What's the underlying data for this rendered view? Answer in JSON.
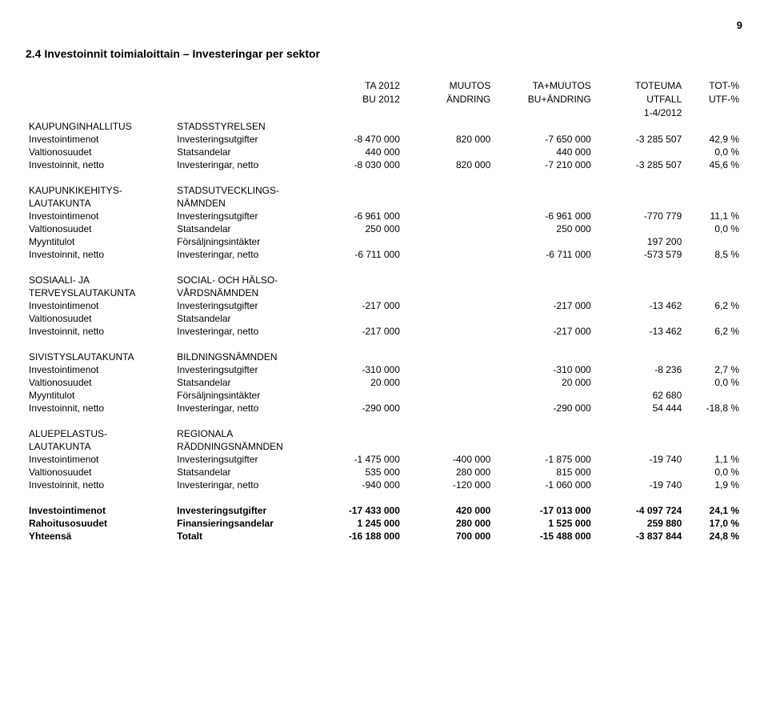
{
  "page_number": "9",
  "section_title": "2.4 Investoinnit toimialoittain – Investeringar per sektor",
  "header": {
    "row1": [
      "TA 2012",
      "MUUTOS",
      "TA+MUUTOS",
      "TOTEUMA",
      "TOT-%"
    ],
    "row2": [
      "BU 2012",
      "ÄNDRING",
      "BU+ÄNDRING",
      "UTFALL",
      "UTF-%"
    ],
    "row3": [
      "",
      "",
      "",
      "1-4/2012",
      ""
    ]
  },
  "groups": [
    {
      "head_fi": "KAUPUNGINHALLITUS",
      "head_sv": "STADSSTYRELSEN",
      "rows": [
        {
          "fi": "Investointimenot",
          "sv": "Investeringsutgifter",
          "c": [
            "-8 470 000",
            "820 000",
            "-7 650 000",
            "-3 285 507",
            "42,9 %"
          ]
        },
        {
          "fi": "Valtionosuudet",
          "sv": "Statsandelar",
          "c": [
            "440 000",
            "",
            "440 000",
            "",
            "0,0 %"
          ]
        },
        {
          "fi": "Investoinnit, netto",
          "sv": "Investeringar, netto",
          "c": [
            "-8 030 000",
            "820 000",
            "-7 210 000",
            "-3 285 507",
            "45,6 %"
          ]
        }
      ]
    },
    {
      "head_fi": "KAUPUNKIKEHITYS-",
      "head_fi2": "LAUTAKUNTA",
      "head_sv": "STADSUTVECKLINGS-",
      "head_sv2": "NÄMNDEN",
      "rows": [
        {
          "fi": "Investointimenot",
          "sv": "Investeringsutgifter",
          "c": [
            "-6 961 000",
            "",
            "-6 961 000",
            "-770 779",
            "11,1 %"
          ]
        },
        {
          "fi": "Valtionosuudet",
          "sv": "Statsandelar",
          "c": [
            "250 000",
            "",
            "250 000",
            "",
            "0,0 %"
          ]
        },
        {
          "fi": "Myyntitulot",
          "sv": "Försäljningsintäkter",
          "c": [
            "",
            "",
            "",
            "197 200",
            ""
          ]
        },
        {
          "fi": "Investoinnit, netto",
          "sv": "Investeringar, netto",
          "c": [
            "-6 711 000",
            "",
            "-6 711 000",
            "-573 579",
            "8,5 %"
          ]
        }
      ]
    },
    {
      "head_fi": "SOSIAALI- JA",
      "head_fi2": " TERVEYSLAUTAKUNTA",
      "head_sv": "SOCIAL- OCH HÄLSO-",
      "head_sv2": "VÅRDSNÄMNDEN",
      "rows": [
        {
          "fi": "Investointimenot",
          "sv": "Investeringsutgifter",
          "c": [
            "-217 000",
            "",
            "-217 000",
            "-13 462",
            "6,2 %"
          ]
        },
        {
          "fi": "Valtionosuudet",
          "sv": "Statsandelar",
          "c": [
            "",
            "",
            "",
            "",
            ""
          ]
        },
        {
          "fi": "Investoinnit, netto",
          "sv": "Investeringar, netto",
          "c": [
            "-217 000",
            "",
            "-217 000",
            "-13 462",
            "6,2 %"
          ]
        }
      ]
    },
    {
      "head_fi": "SIVISTYSLAUTAKUNTA",
      "head_sv": "BILDNINGSNÄMNDEN",
      "rows": [
        {
          "fi": "Investointimenot",
          "sv": "Investeringsutgifter",
          "c": [
            "-310 000",
            "",
            "-310 000",
            "-8 236",
            "2,7 %"
          ]
        },
        {
          "fi": "Valtionosuudet",
          "sv": "Statsandelar",
          "c": [
            "20 000",
            "",
            "20 000",
            "",
            "0,0 %"
          ]
        },
        {
          "fi": "Myyntitulot",
          "sv": "Försäljningsintäkter",
          "c": [
            "",
            "",
            "",
            "62 680",
            ""
          ]
        },
        {
          "fi": "Investoinnit, netto",
          "sv": "Investeringar, netto",
          "c": [
            "-290 000",
            "",
            "-290 000",
            "54 444",
            "-18,8 %"
          ]
        }
      ]
    },
    {
      "head_fi": "ALUEPELASTUS-",
      "head_fi2": "LAUTAKUNTA",
      "head_sv": "REGIONALA",
      "head_sv2": "RÄDDNINGSNÄMNDEN",
      "rows": [
        {
          "fi": "Investointimenot",
          "sv": "Investeringsutgifter",
          "c": [
            "-1 475 000",
            "-400 000",
            "-1 875 000",
            "-19 740",
            "1,1 %"
          ]
        },
        {
          "fi": "Valtionosuudet",
          "sv": "Statsandelar",
          "c": [
            "535 000",
            "280 000",
            "815 000",
            "",
            "0,0 %"
          ]
        },
        {
          "fi": "Investoinnit, netto",
          "sv": "Investeringar, netto",
          "c": [
            "-940 000",
            "-120 000",
            "-1 060 000",
            "-19 740",
            "1,9 %"
          ]
        }
      ]
    }
  ],
  "totals": [
    {
      "fi": "Investointimenot",
      "sv": "Investeringsutgifter",
      "c": [
        "-17 433 000",
        "420 000",
        "-17 013 000",
        "-4 097 724",
        "24,1 %"
      ]
    },
    {
      "fi": "Rahoitusosuudet",
      "sv": "Finansieringsandelar",
      "c": [
        "1 245 000",
        "280 000",
        "1 525 000",
        "259 880",
        "17,0 %"
      ]
    },
    {
      "fi": "Yhteensä",
      "sv": "Totalt",
      "c": [
        "-16 188 000",
        "700 000",
        "-15 488 000",
        "-3 837 844",
        "24,8 %"
      ]
    }
  ]
}
